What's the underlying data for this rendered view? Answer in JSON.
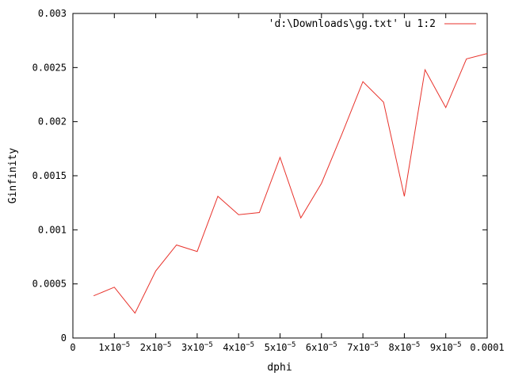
{
  "chart_data": {
    "type": "line",
    "title": "",
    "xlabel": "dphi",
    "ylabel": "Ginfinity",
    "xlim": [
      0,
      0.0001
    ],
    "ylim": [
      0,
      0.003
    ],
    "grid": false,
    "legend_position": "top-right",
    "x_tick_labels": [
      {
        "value": 0,
        "base": "0",
        "exp": ""
      },
      {
        "value": 1e-05,
        "base": "1x10",
        "exp": "−5"
      },
      {
        "value": 2e-05,
        "base": "2x10",
        "exp": "−5"
      },
      {
        "value": 3e-05,
        "base": "3x10",
        "exp": "−5"
      },
      {
        "value": 4e-05,
        "base": "4x10",
        "exp": "−5"
      },
      {
        "value": 5e-05,
        "base": "5x10",
        "exp": "−5"
      },
      {
        "value": 6e-05,
        "base": "6x10",
        "exp": "−5"
      },
      {
        "value": 7e-05,
        "base": "7x10",
        "exp": "−5"
      },
      {
        "value": 8e-05,
        "base": "8x10",
        "exp": "−5"
      },
      {
        "value": 9e-05,
        "base": "9x10",
        "exp": "−5"
      },
      {
        "value": 0.0001,
        "base": "0.0001",
        "exp": ""
      }
    ],
    "y_tick_labels": [
      {
        "value": 0,
        "label": "0"
      },
      {
        "value": 0.0005,
        "label": "0.0005"
      },
      {
        "value": 0.001,
        "label": "0.001"
      },
      {
        "value": 0.0015,
        "label": "0.0015"
      },
      {
        "value": 0.002,
        "label": "0.002"
      },
      {
        "value": 0.0025,
        "label": "0.0025"
      },
      {
        "value": 0.003,
        "label": "0.003"
      }
    ],
    "series": [
      {
        "name": "'d:\\Downloads\\gg.txt' u 1:2",
        "color": "#e8322b",
        "x": [
          5e-06,
          1e-05,
          1.5e-05,
          2e-05,
          2.5e-05,
          3e-05,
          3.5e-05,
          4e-05,
          4.5e-05,
          5e-05,
          5.5e-05,
          6e-05,
          6.5e-05,
          7e-05,
          7.5e-05,
          8e-05,
          8.5e-05,
          9e-05,
          9.5e-05,
          0.0001
        ],
        "y": [
          0.00039,
          0.00047,
          0.00023,
          0.00062,
          0.00086,
          0.0008,
          0.00131,
          0.00114,
          0.00116,
          0.00167,
          0.00111,
          0.00143,
          0.00189,
          0.00237,
          0.00218,
          0.00131,
          0.00248,
          0.00213,
          0.00258,
          0.00263
        ]
      }
    ]
  }
}
